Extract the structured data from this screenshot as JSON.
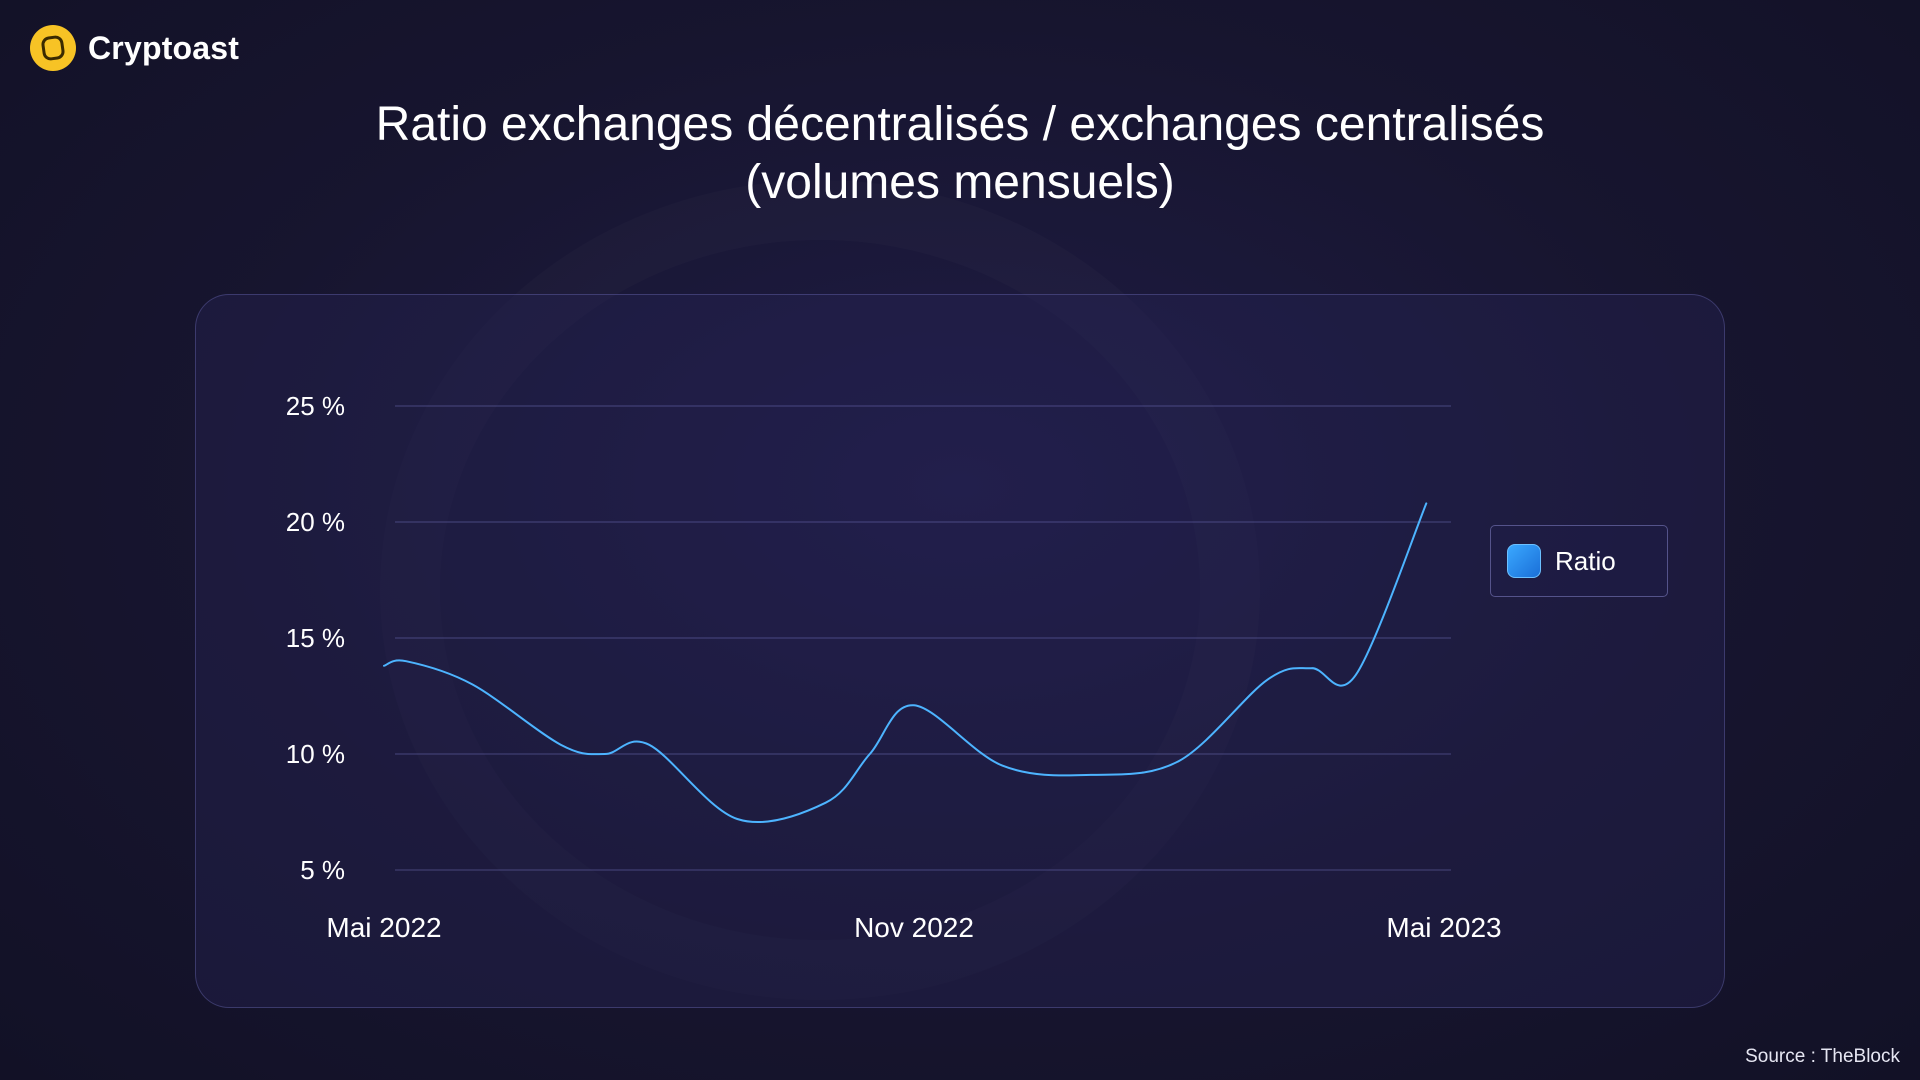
{
  "brand": {
    "name": "Cryptoast",
    "logo_icon": "cryptoast-logo-icon",
    "logo_color": "#f7c325"
  },
  "chart_data": {
    "type": "line",
    "title": "Ratio exchanges décentralisés / exchanges centralisés",
    "subtitle": "(volumes mensuels)",
    "xlabel": "",
    "ylabel": "",
    "ylim": [
      5,
      25
    ],
    "y_ticks": [
      {
        "value": 25,
        "label": "25 %"
      },
      {
        "value": 20,
        "label": "20 %"
      },
      {
        "value": 15,
        "label": "15 %"
      },
      {
        "value": 10,
        "label": "10 %"
      },
      {
        "value": 5,
        "label": "5 %"
      }
    ],
    "x_range": [
      0,
      12
    ],
    "x_ticks": [
      {
        "value": 0,
        "label": "Mai 2022"
      },
      {
        "value": 6,
        "label": "Nov 2022"
      },
      {
        "value": 12,
        "label": "Mai 2023"
      }
    ],
    "grid": true,
    "legend_position": "right",
    "series": [
      {
        "name": "Ratio",
        "color": "#4db4ff",
        "x": [
          0,
          0.25,
          1,
          2,
          2.5,
          3,
          4,
          5,
          5.5,
          6,
          7,
          8,
          9,
          10,
          10.5,
          11,
          11.8
        ],
        "values": [
          13.8,
          14.0,
          13.0,
          10.4,
          10.0,
          10.4,
          7.2,
          7.9,
          10.0,
          12.1,
          9.5,
          9.1,
          9.7,
          13.2,
          13.7,
          13.4,
          20.8
        ]
      }
    ]
  },
  "source": "Source : TheBlock"
}
